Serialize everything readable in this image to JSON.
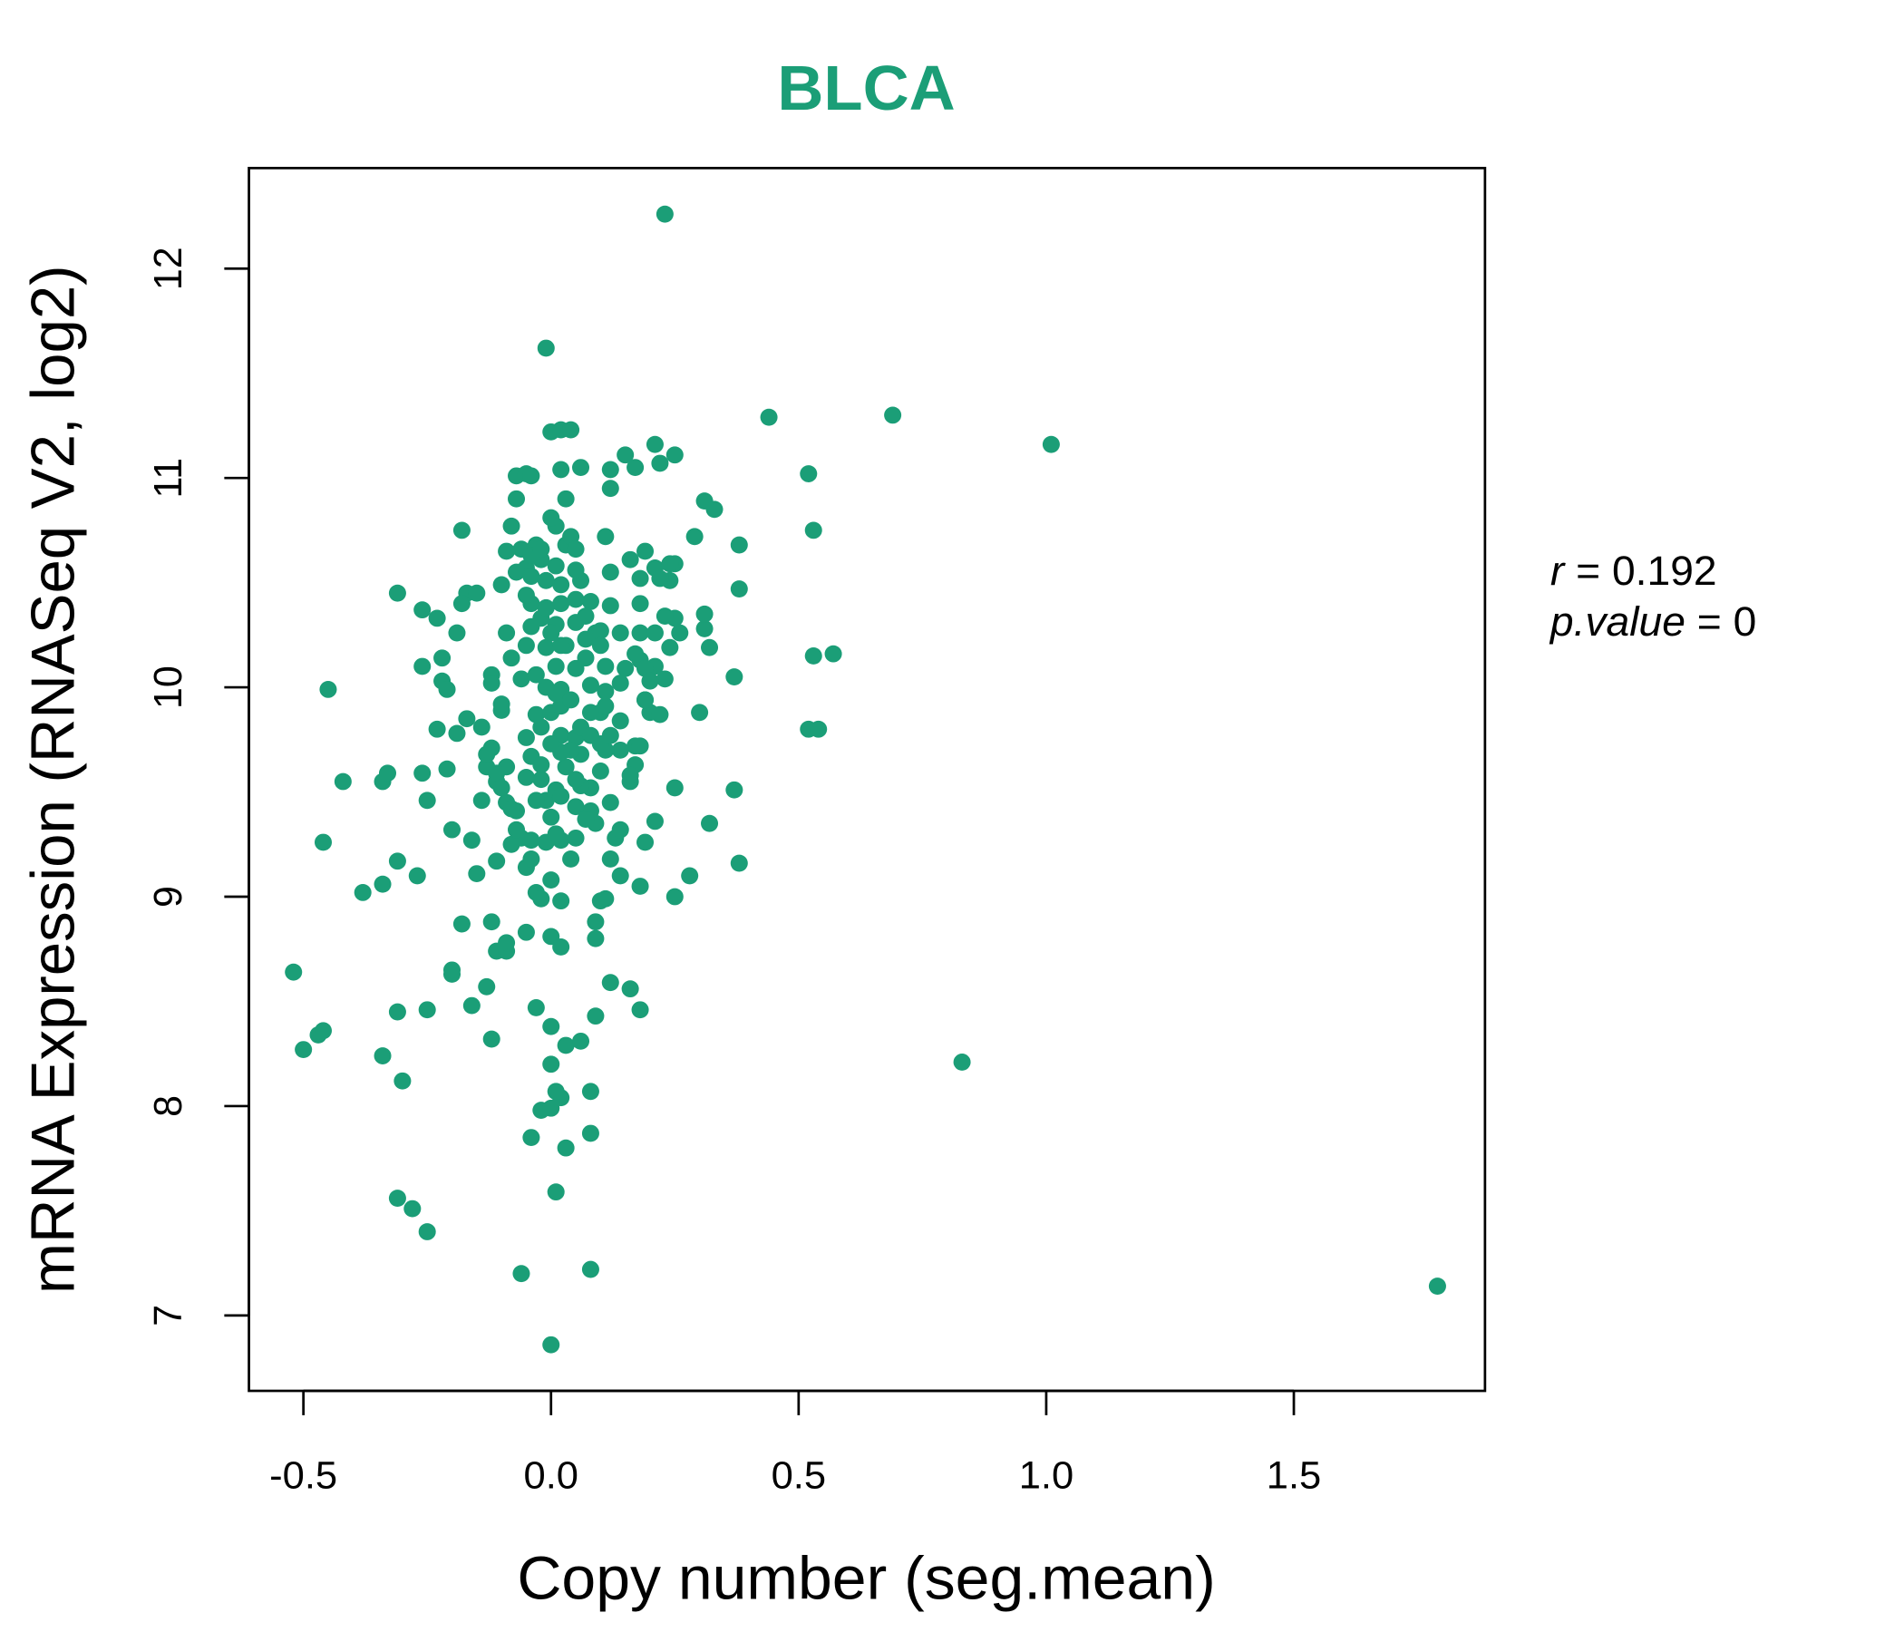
{
  "chart_data": {
    "type": "scatter",
    "title": "BLCA",
    "xlabel": "Copy number (seg.mean)",
    "ylabel": "mRNA Expression (RNASeq V2, log2)",
    "xlim": [
      -0.61,
      1.886
    ],
    "ylim": [
      6.64,
      12.48
    ],
    "xticks": [
      -0.5,
      0.0,
      0.5,
      1.0,
      1.5
    ],
    "xtick_labels": [
      "-0.5",
      "0.0",
      "0.5",
      "1.0",
      "1.5"
    ],
    "yticks": [
      7,
      8,
      9,
      10,
      11,
      12
    ],
    "ytick_labels": [
      "7",
      "8",
      "9",
      "10",
      "11",
      "12"
    ],
    "grid": false,
    "point_color": "#1B9E77",
    "title_color": "#1B9E77",
    "stats": {
      "r_label": "r",
      "r_value": "0.192",
      "p_label": "p.value",
      "p_value": "0",
      "equals": "="
    },
    "points": [
      [
        0.23,
        12.26
      ],
      [
        -0.01,
        11.62
      ],
      [
        0.44,
        11.29
      ],
      [
        0.69,
        11.3
      ],
      [
        1.01,
        11.16
      ],
      [
        0.52,
        11.02
      ],
      [
        0.53,
        10.75
      ],
      [
        0.83,
        8.21
      ],
      [
        1.79,
        7.14
      ],
      [
        0.0,
        6.86
      ],
      [
        -0.06,
        7.2
      ],
      [
        0.08,
        7.22
      ],
      [
        0.01,
        7.59
      ],
      [
        -0.31,
        7.56
      ],
      [
        -0.28,
        7.51
      ],
      [
        -0.25,
        7.4
      ],
      [
        -0.04,
        7.85
      ],
      [
        0.03,
        7.8
      ],
      [
        0.08,
        7.87
      ],
      [
        -0.02,
        7.98
      ],
      [
        0.0,
        7.99
      ],
      [
        0.02,
        8.04
      ],
      [
        0.01,
        8.07
      ],
      [
        0.08,
        8.07
      ],
      [
        0.0,
        8.2
      ],
      [
        0.03,
        8.29
      ],
      [
        0.06,
        8.31
      ],
      [
        0.0,
        8.38
      ],
      [
        -0.03,
        8.47
      ],
      [
        0.09,
        8.43
      ],
      [
        0.18,
        8.46
      ],
      [
        0.16,
        8.56
      ],
      [
        0.12,
        8.59
      ],
      [
        -0.31,
        8.45
      ],
      [
        -0.25,
        8.46
      ],
      [
        -0.16,
        8.48
      ],
      [
        -0.13,
        8.57
      ],
      [
        -0.12,
        8.32
      ],
      [
        -0.34,
        8.24
      ],
      [
        -0.3,
        8.12
      ],
      [
        -0.5,
        8.27
      ],
      [
        -0.47,
        8.34
      ],
      [
        -0.46,
        8.36
      ],
      [
        -0.52,
        8.64
      ],
      [
        -0.2,
        8.63
      ],
      [
        -0.2,
        8.65
      ],
      [
        -0.11,
        8.74
      ],
      [
        -0.09,
        8.74
      ],
      [
        -0.09,
        8.78
      ],
      [
        -0.18,
        8.87
      ],
      [
        -0.12,
        8.88
      ],
      [
        -0.05,
        8.83
      ],
      [
        0.0,
        8.81
      ],
      [
        0.02,
        8.76
      ],
      [
        0.09,
        8.8
      ],
      [
        0.09,
        8.88
      ],
      [
        0.1,
        8.98
      ],
      [
        0.11,
        8.99
      ],
      [
        0.18,
        9.05
      ],
      [
        0.14,
        9.1
      ],
      [
        0.25,
        9.0
      ],
      [
        0.28,
        9.1
      ],
      [
        0.12,
        9.18
      ],
      [
        -0.31,
        9.17
      ],
      [
        -0.27,
        9.1
      ],
      [
        -0.38,
        9.02
      ],
      [
        -0.34,
        9.06
      ],
      [
        -0.46,
        9.26
      ],
      [
        -0.11,
        9.17
      ],
      [
        -0.15,
        9.11
      ],
      [
        -0.2,
        9.32
      ],
      [
        -0.16,
        9.27
      ],
      [
        -0.05,
        9.14
      ],
      [
        -0.04,
        9.18
      ],
      [
        -0.03,
        9.02
      ],
      [
        -0.02,
        8.99
      ],
      [
        0.02,
        8.98
      ],
      [
        0.0,
        9.08
      ],
      [
        0.04,
        9.18
      ],
      [
        0.02,
        9.27
      ],
      [
        0.05,
        9.28
      ],
      [
        0.13,
        9.28
      ],
      [
        0.19,
        9.26
      ],
      [
        0.32,
        9.35
      ],
      [
        0.38,
        9.16
      ],
      [
        0.37,
        9.51
      ],
      [
        0.25,
        9.52
      ],
      [
        0.21,
        9.36
      ],
      [
        0.14,
        9.32
      ],
      [
        0.12,
        9.45
      ],
      [
        0.08,
        9.41
      ],
      [
        -0.09,
        9.45
      ],
      [
        -0.14,
        9.46
      ],
      [
        -0.25,
        9.46
      ],
      [
        -0.42,
        9.55
      ],
      [
        -0.34,
        9.55
      ],
      [
        -0.33,
        9.59
      ],
      [
        -0.26,
        9.59
      ],
      [
        -0.21,
        9.61
      ],
      [
        -0.13,
        9.62
      ],
      [
        -0.09,
        9.62
      ],
      [
        -0.12,
        9.71
      ],
      [
        -0.11,
        9.55
      ],
      [
        -0.07,
        9.41
      ],
      [
        -0.06,
        9.28
      ],
      [
        -0.01,
        9.26
      ],
      [
        0.0,
        9.38
      ],
      [
        0.05,
        9.43
      ],
      [
        0.08,
        9.52
      ],
      [
        0.16,
        9.55
      ],
      [
        0.17,
        9.63
      ],
      [
        0.1,
        9.6
      ],
      [
        0.17,
        9.72
      ],
      [
        0.18,
        9.72
      ],
      [
        0.14,
        9.7
      ],
      [
        0.11,
        9.7
      ],
      [
        0.03,
        9.62
      ],
      [
        0.06,
        9.68
      ],
      [
        -0.04,
        9.67
      ],
      [
        -0.05,
        9.57
      ],
      [
        -0.02,
        9.56
      ],
      [
        -0.23,
        9.8
      ],
      [
        -0.19,
        9.78
      ],
      [
        -0.17,
        9.85
      ],
      [
        -0.14,
        9.81
      ],
      [
        -0.1,
        9.89
      ],
      [
        -0.1,
        9.92
      ],
      [
        -0.05,
        9.76
      ],
      [
        -0.02,
        9.81
      ],
      [
        0.02,
        9.77
      ],
      [
        0.05,
        9.76
      ],
      [
        0.1,
        9.88
      ],
      [
        0.11,
        9.91
      ],
      [
        0.2,
        9.88
      ],
      [
        0.22,
        9.87
      ],
      [
        0.19,
        9.94
      ],
      [
        0.3,
        9.88
      ],
      [
        0.52,
        9.8
      ],
      [
        0.54,
        9.8
      ],
      [
        0.37,
        10.05
      ],
      [
        0.23,
        10.04
      ],
      [
        0.53,
        10.15
      ],
      [
        0.57,
        10.16
      ],
      [
        0.32,
        10.19
      ],
      [
        0.31,
        10.28
      ],
      [
        0.31,
        10.35
      ],
      [
        0.25,
        10.33
      ],
      [
        0.24,
        10.19
      ],
      [
        0.25,
        10.59
      ],
      [
        0.24,
        10.51
      ],
      [
        0.18,
        10.4
      ],
      [
        0.18,
        10.26
      ],
      [
        0.18,
        10.13
      ],
      [
        0.15,
        10.09
      ],
      [
        0.11,
        10.1
      ],
      [
        0.07,
        10.14
      ],
      [
        0.05,
        10.31
      ],
      [
        0.09,
        10.24
      ],
      [
        0.12,
        10.39
      ],
      [
        0.08,
        10.41
      ],
      [
        0.06,
        10.51
      ],
      [
        0.05,
        10.56
      ],
      [
        0.03,
        10.68
      ],
      [
        0.04,
        10.72
      ],
      [
        0.01,
        10.77
      ],
      [
        0.0,
        10.81
      ],
      [
        -0.03,
        10.68
      ],
      [
        -0.06,
        10.66
      ],
      [
        -0.05,
        10.57
      ],
      [
        -0.07,
        10.55
      ],
      [
        -0.04,
        10.53
      ],
      [
        -0.1,
        10.49
      ],
      [
        -0.17,
        10.45
      ],
      [
        -0.15,
        10.45
      ],
      [
        -0.18,
        10.4
      ],
      [
        -0.31,
        10.45
      ],
      [
        -0.26,
        10.37
      ],
      [
        -0.23,
        10.33
      ],
      [
        -0.19,
        10.26
      ],
      [
        -0.09,
        10.26
      ],
      [
        -0.08,
        10.14
      ],
      [
        -0.05,
        10.2
      ],
      [
        -0.06,
        10.04
      ],
      [
        -0.03,
        10.06
      ],
      [
        0.01,
        10.1
      ],
      [
        0.02,
        9.99
      ],
      [
        0.03,
        10.2
      ],
      [
        -0.12,
        10.06
      ],
      [
        -0.12,
        10.02
      ],
      [
        -0.26,
        10.1
      ],
      [
        -0.22,
        10.14
      ],
      [
        -0.22,
        10.03
      ],
      [
        -0.21,
        9.99
      ],
      [
        -0.45,
        9.99
      ],
      [
        -0.04,
        10.4
      ],
      [
        -0.02,
        10.33
      ],
      [
        0.01,
        10.3
      ],
      [
        -0.04,
        10.29
      ],
      [
        0.02,
        10.4
      ],
      [
        0.05,
        10.42
      ],
      [
        0.07,
        10.34
      ],
      [
        0.12,
        10.55
      ],
      [
        0.16,
        10.61
      ],
      [
        0.18,
        10.52
      ],
      [
        0.19,
        10.65
      ],
      [
        0.21,
        10.57
      ],
      [
        0.22,
        10.52
      ],
      [
        0.24,
        10.59
      ],
      [
        0.29,
        10.72
      ],
      [
        0.38,
        10.68
      ],
      [
        0.38,
        10.47
      ],
      [
        0.31,
        10.89
      ],
      [
        0.33,
        10.85
      ],
      [
        0.11,
        10.72
      ],
      [
        0.03,
        10.9
      ],
      [
        0.06,
        11.05
      ],
      [
        0.12,
        11.04
      ],
      [
        0.12,
        10.95
      ],
      [
        0.15,
        11.11
      ],
      [
        0.17,
        11.05
      ],
      [
        0.21,
        11.16
      ],
      [
        0.25,
        11.11
      ],
      [
        0.22,
        11.07
      ],
      [
        0.02,
        11.04
      ],
      [
        0.0,
        11.22
      ],
      [
        0.02,
        11.23
      ],
      [
        0.04,
        11.23
      ],
      [
        -0.08,
        10.77
      ],
      [
        -0.07,
        10.9
      ],
      [
        -0.07,
        11.01
      ],
      [
        -0.05,
        11.02
      ],
      [
        -0.04,
        11.01
      ],
      [
        -0.18,
        10.75
      ],
      [
        -0.09,
        10.65
      ],
      [
        -0.05,
        10.44
      ],
      [
        -0.01,
        10.38
      ],
      [
        -0.03,
        9.87
      ],
      [
        0.0,
        9.88
      ],
      [
        0.02,
        9.91
      ],
      [
        0.08,
        9.88
      ],
      [
        0.08,
        10.01
      ],
      [
        0.11,
        9.98
      ],
      [
        0.14,
        10.02
      ],
      [
        0.17,
        10.16
      ],
      [
        0.21,
        10.1
      ],
      [
        0.19,
        10.09
      ],
      [
        0.2,
        10.03
      ],
      [
        0.19,
        9.94
      ],
      [
        0.1,
        9.73
      ],
      [
        0.04,
        9.7
      ],
      [
        -0.01,
        9.46
      ],
      [
        0.01,
        9.51
      ],
      [
        0.06,
        9.53
      ],
      [
        0.09,
        9.35
      ],
      [
        0.07,
        9.37
      ],
      [
        0.01,
        9.3
      ],
      [
        -0.04,
        9.27
      ],
      [
        -0.08,
        9.25
      ],
      [
        0.16,
        9.58
      ],
      [
        -0.13,
        9.68
      ],
      [
        -0.11,
        9.59
      ],
      [
        -0.1,
        9.52
      ],
      [
        -0.08,
        9.42
      ],
      [
        -0.07,
        9.32
      ],
      [
        -0.03,
        9.46
      ],
      [
        0.02,
        9.48
      ],
      [
        0.05,
        9.56
      ],
      [
        0.02,
        9.69
      ],
      [
        0.06,
        9.81
      ],
      [
        0.08,
        9.77
      ],
      [
        0.12,
        9.77
      ],
      [
        0.14,
        9.84
      ],
      [
        0.0,
        9.73
      ],
      [
        -0.02,
        9.63
      ],
      [
        -0.01,
        10.0
      ],
      [
        0.01,
        9.97
      ],
      [
        0.04,
        9.94
      ],
      [
        0.05,
        10.09
      ],
      [
        0.07,
        10.23
      ],
      [
        0.09,
        10.26
      ],
      [
        0.1,
        10.27
      ],
      [
        0.01,
        10.58
      ],
      [
        0.02,
        10.49
      ],
      [
        -0.01,
        10.51
      ],
      [
        -0.02,
        10.61
      ],
      [
        -0.04,
        10.63
      ],
      [
        0.05,
        10.66
      ],
      [
        -0.01,
        10.19
      ],
      [
        0.0,
        10.26
      ],
      [
        0.02,
        10.2
      ],
      [
        0.1,
        10.2
      ],
      [
        0.14,
        10.26
      ],
      [
        0.21,
        10.26
      ],
      [
        0.23,
        10.34
      ],
      [
        0.26,
        10.26
      ],
      [
        -0.02,
        10.66
      ]
    ]
  }
}
